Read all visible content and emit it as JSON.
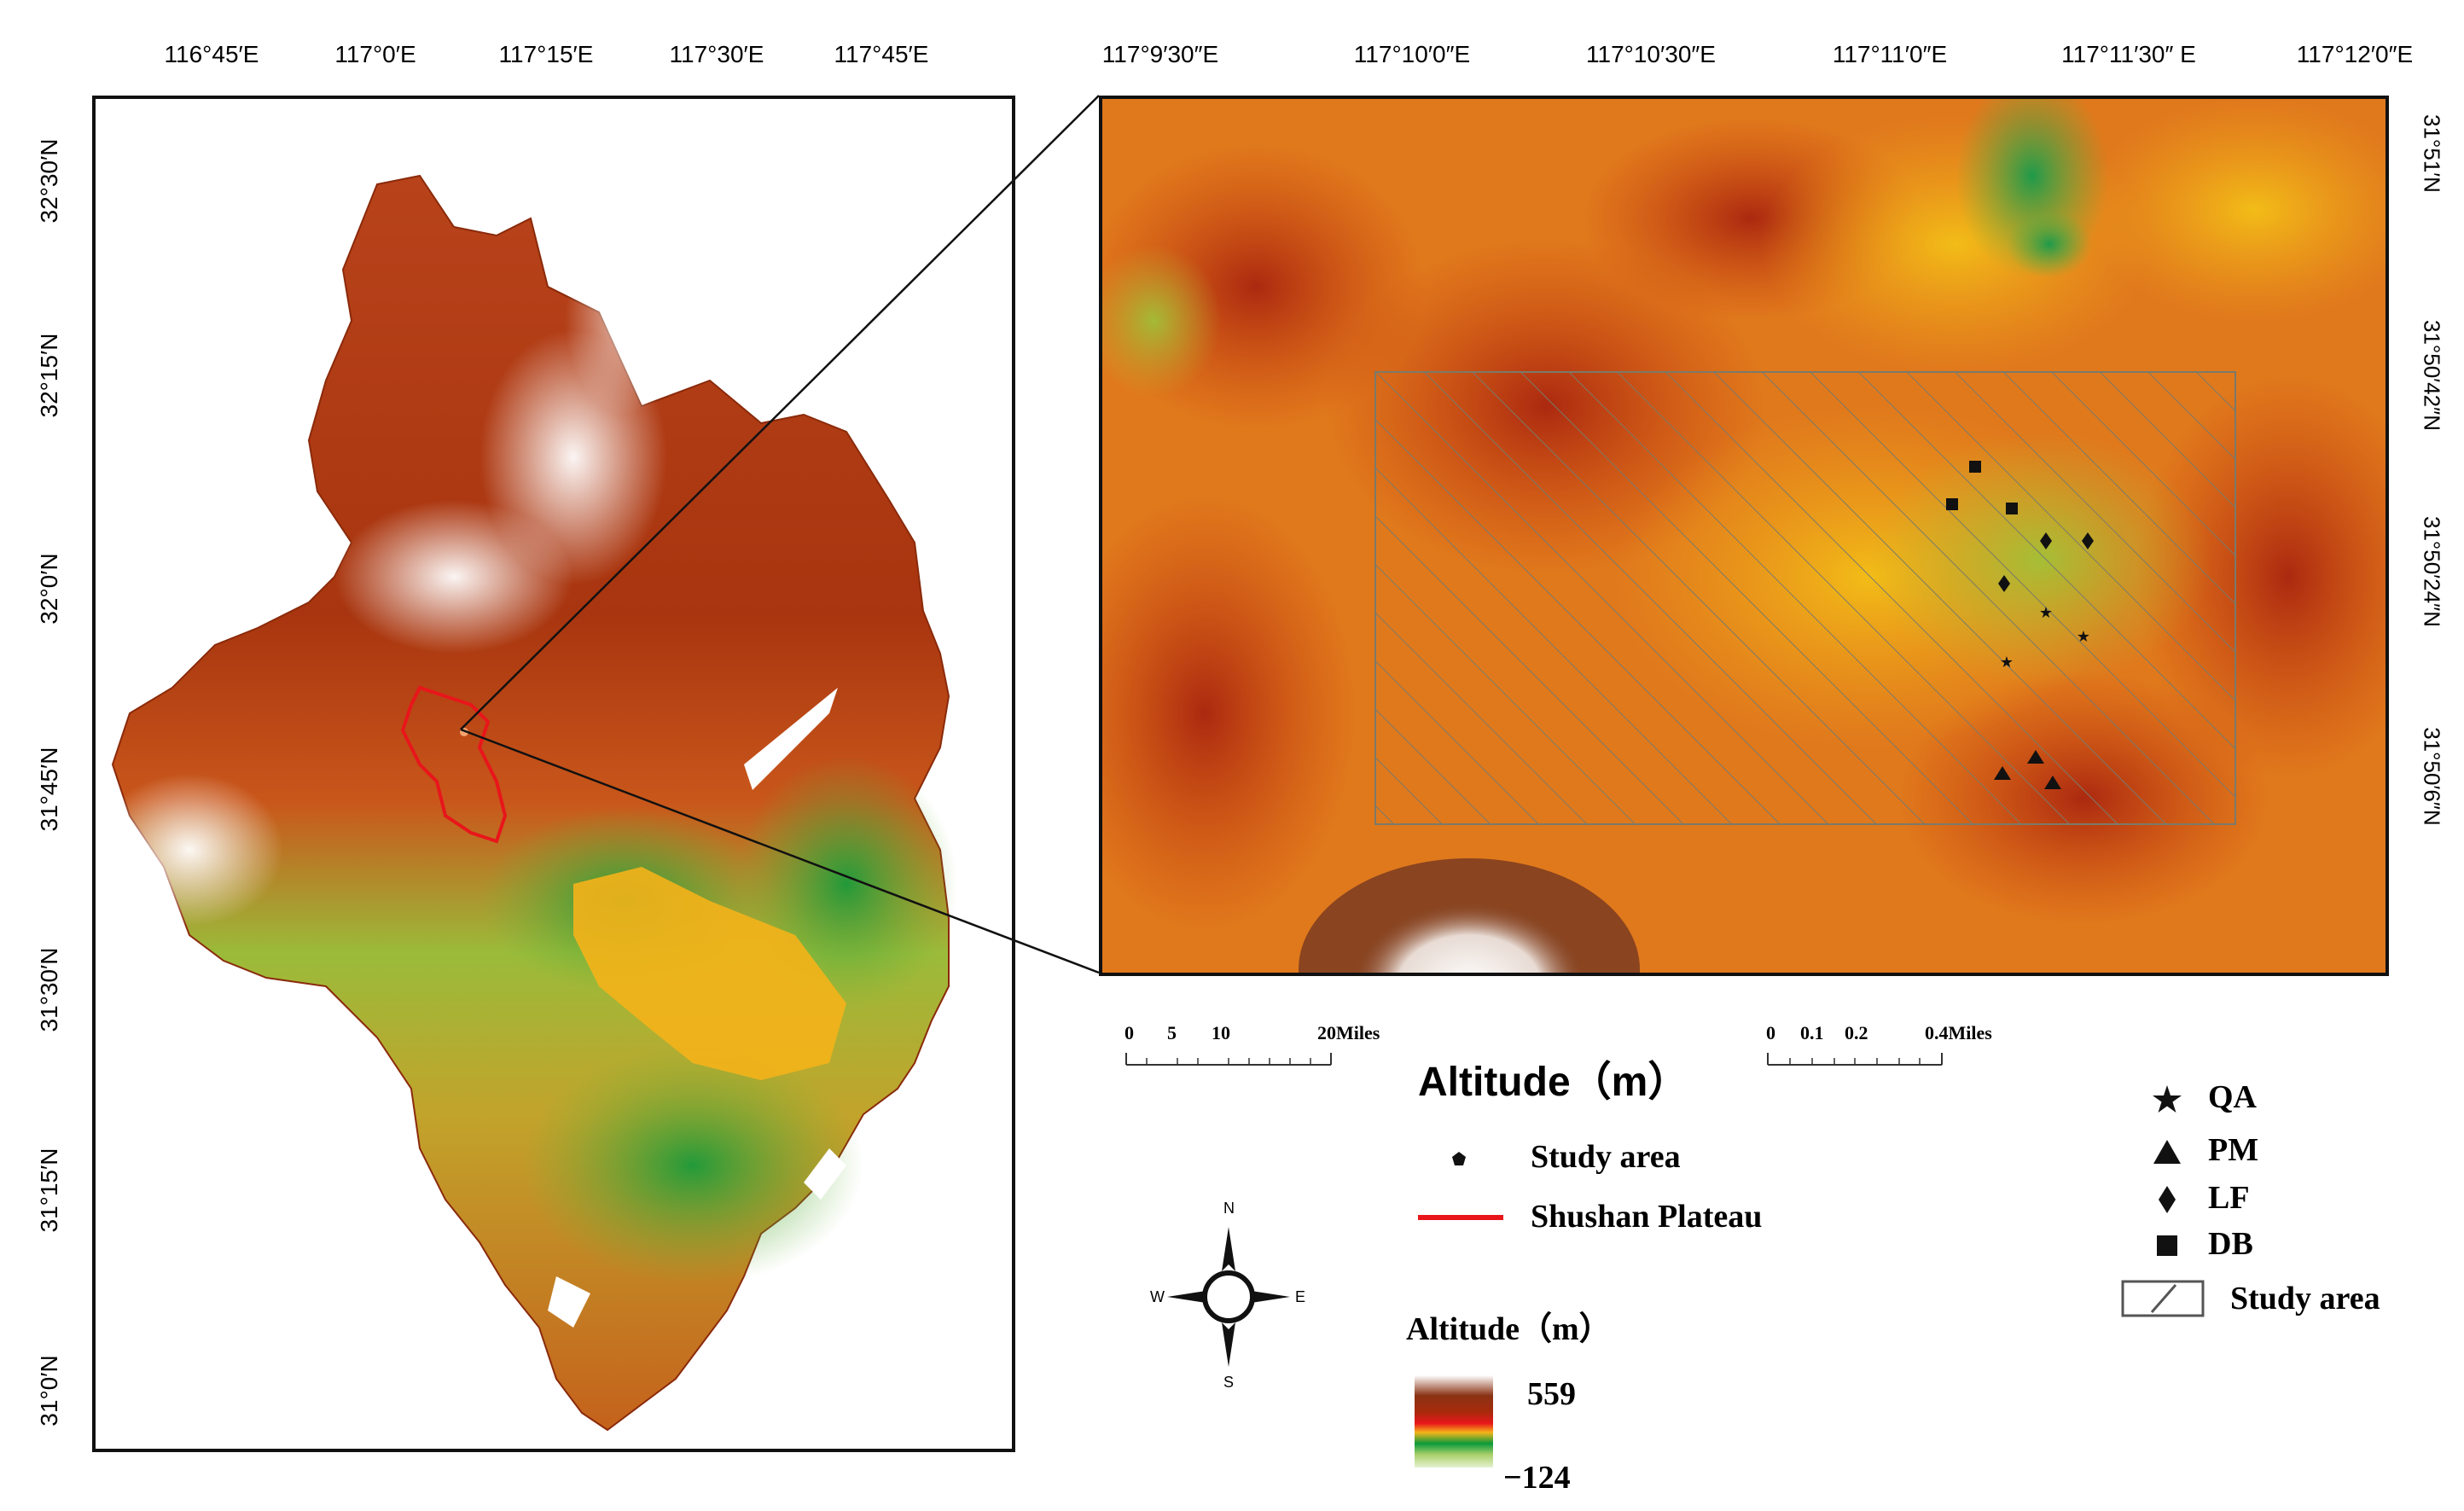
{
  "overview_map": {
    "top_ticks": [
      "116°45′E",
      "117°0′E",
      "117°15′E",
      "117°30′E",
      "117°45′E"
    ],
    "left_ticks": [
      "32°30′N",
      "32°15′N",
      "32°0′N",
      "31°45′N",
      "31°30′N",
      "31°15′N",
      "31°0′N"
    ],
    "boundary_color": "#e8161b"
  },
  "inset_map": {
    "top_ticks": [
      "117°9′30″E",
      "117°10′0″E",
      "117°10′30″E",
      "117°11′0″E",
      "117°11′30″ E",
      "117°12′0″E"
    ],
    "right_ticks": [
      "31°51′N",
      "31°50′42″N",
      "31°50′24″N",
      "31°50′6″N"
    ]
  },
  "scale_bar_left": {
    "labels": [
      "0",
      "5",
      "10",
      "20Miles"
    ]
  },
  "scale_bar_right": {
    "labels": [
      "0",
      "0.1",
      "0.2",
      "0.4Miles"
    ]
  },
  "legend_main": {
    "title": "Altitude（m）",
    "items": [
      {
        "label": "Study area",
        "symbol": "dot-icon"
      },
      {
        "label": "Shushan Plateau",
        "symbol": "red-line",
        "color": "#e8161b"
      }
    ]
  },
  "compass": {
    "n": "N",
    "s": "S",
    "e": "E",
    "w": "W"
  },
  "altitude_scale": {
    "title": "Altitude（m）",
    "max_label": "559",
    "min_label": "−124"
  },
  "symbol_legend": {
    "items": [
      {
        "label": "QA",
        "symbol": "star-icon"
      },
      {
        "label": "PM",
        "symbol": "triangle-icon"
      },
      {
        "label": "LF",
        "symbol": "diamond-icon"
      },
      {
        "label": "DB",
        "symbol": "square-icon"
      },
      {
        "label": "Study area",
        "symbol": "hatched-box-icon"
      }
    ]
  }
}
